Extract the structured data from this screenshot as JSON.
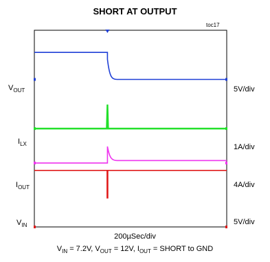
{
  "chart_data": {
    "type": "line",
    "title": "SHORT AT OUTPUT",
    "figure_id": "toc17",
    "timebase": "200µSec/div",
    "condition": {
      "vin_sym": "V",
      "vin_sub": "IN",
      "vin_val": " = 7.2V, ",
      "vout_sym": "V",
      "vout_sub": "OUT",
      "vout_val": " = 12V, ",
      "iout_sym": "I",
      "iout_sub": "OUT",
      "iout_val": " = SHORT to GND"
    },
    "x_divisions": 10,
    "y_divisions": 8,
    "short_event_div": 3.8,
    "channels": [
      {
        "name_sym": "V",
        "name_sub": "OUT",
        "scale": "5V/div",
        "color": "#1f3fd6",
        "ref_div": 2.0,
        "before_div": 0.9,
        "after_div": 2.0
      },
      {
        "name_sym": "I",
        "name_sub": "LX",
        "scale": "1A/div",
        "color": "#22e02a",
        "ref_div": 4.0,
        "before_div": 4.0,
        "after_div": 4.0
      },
      {
        "name_sym": "I",
        "name_sub": "OUT",
        "scale": "4A/div",
        "color": "#ee33ee",
        "ref_div": 5.4,
        "before_div": 5.4,
        "after_div": 5.3
      },
      {
        "name_sym": "V",
        "name_sub": "IN",
        "scale": "5V/div",
        "color": "#e01a1a",
        "ref_div": 8.0,
        "before_div": 5.7,
        "after_div": 5.7
      }
    ]
  }
}
